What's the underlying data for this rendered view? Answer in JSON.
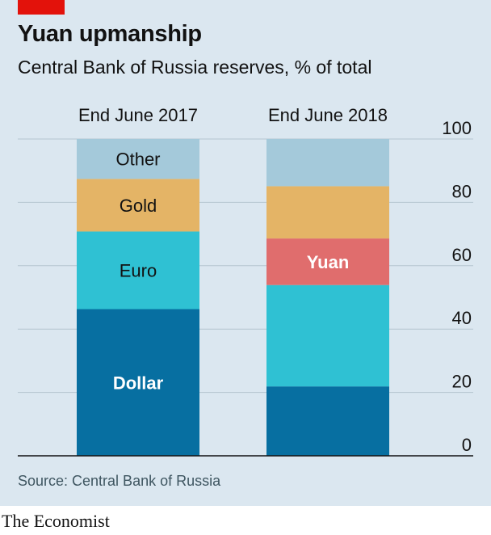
{
  "brand": "The Economist",
  "title": "Yuan upmanship",
  "subtitle": "Central Bank of Russia reserves, % of total",
  "source": "Source: Central Bank of Russia",
  "colors": {
    "background": "#dbe7f0",
    "dollar": "#076fa1",
    "euro": "#2fc1d3",
    "gold": "#e4b466",
    "yuan": "#e06d6d",
    "other": "#a4c9da",
    "grid": "#b5c6d0",
    "axis": "#121212"
  },
  "chart_data": {
    "type": "bar",
    "stacked": true,
    "categories": [
      "End June 2017",
      "End June 2018"
    ],
    "ylim": [
      0,
      100
    ],
    "yticks": [
      0,
      20,
      40,
      60,
      80,
      100
    ],
    "grid": true,
    "series": [
      {
        "name": "Dollar",
        "key": "dollar",
        "values": [
          46.3,
          21.9
        ],
        "label_color": "#ffffff",
        "label_on": 0
      },
      {
        "name": "Euro",
        "key": "euro",
        "values": [
          24.5,
          32.0
        ],
        "label_color": "#121212",
        "label_on": 0
      },
      {
        "name": "Yuan",
        "key": "yuan",
        "values": [
          0,
          14.7
        ],
        "label_color": "#ffffff",
        "label_on": 1
      },
      {
        "name": "Gold",
        "key": "gold",
        "values": [
          16.6,
          16.5
        ],
        "label_color": "#121212",
        "label_on": 0
      },
      {
        "name": "Other",
        "key": "other",
        "values": [
          12.6,
          14.9
        ],
        "label_color": "#121212",
        "label_on": 0
      }
    ]
  }
}
